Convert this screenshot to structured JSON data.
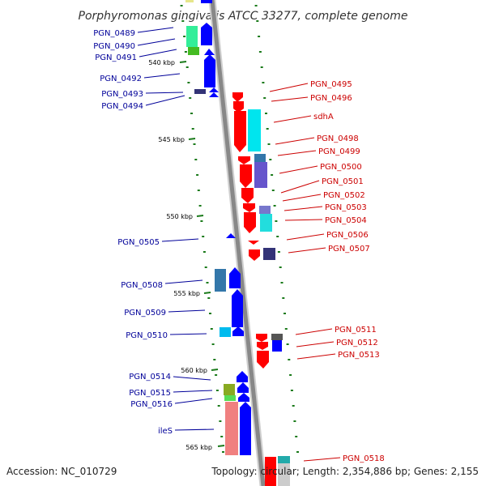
{
  "title": "Porphyromonas gingivalis ATCC 33277, complete genome",
  "accession": "Accession: NC_010729",
  "topology": "Topology: circular; Length: 2,354,886 bp; Genes: 2,155",
  "colors": {
    "forward": "#0000ff",
    "reverse": "#ff0000",
    "backbone": "#999999",
    "tick": "#1a7a1a",
    "left_label": "#000099",
    "right_label": "#cc0000"
  },
  "kbp_labels": [
    "540 kbp",
    "545 kbp",
    "550 kbp",
    "555 kbp",
    "560 kbp",
    "565 kbp"
  ],
  "left_genes": [
    "PGN_0489",
    "PGN_0490",
    "PGN_0491",
    "PGN_0492",
    "PGN_0493",
    "PGN_0494",
    "PGN_0505",
    "PGN_0508",
    "PGN_0509",
    "PGN_0510",
    "PGN_0514",
    "PGN_0515",
    "PGN_0516",
    "ileS"
  ],
  "right_genes": [
    "PGN_0495",
    "PGN_0496",
    "sdhA",
    "PGN_0498",
    "PGN_0499",
    "PGN_0500",
    "PGN_0501",
    "PGN_0502",
    "PGN_0503",
    "PGN_0504",
    "PGN_0506",
    "PGN_0507",
    "PGN_0511",
    "PGN_0512",
    "PGN_0513",
    "PGN_0518"
  ]
}
